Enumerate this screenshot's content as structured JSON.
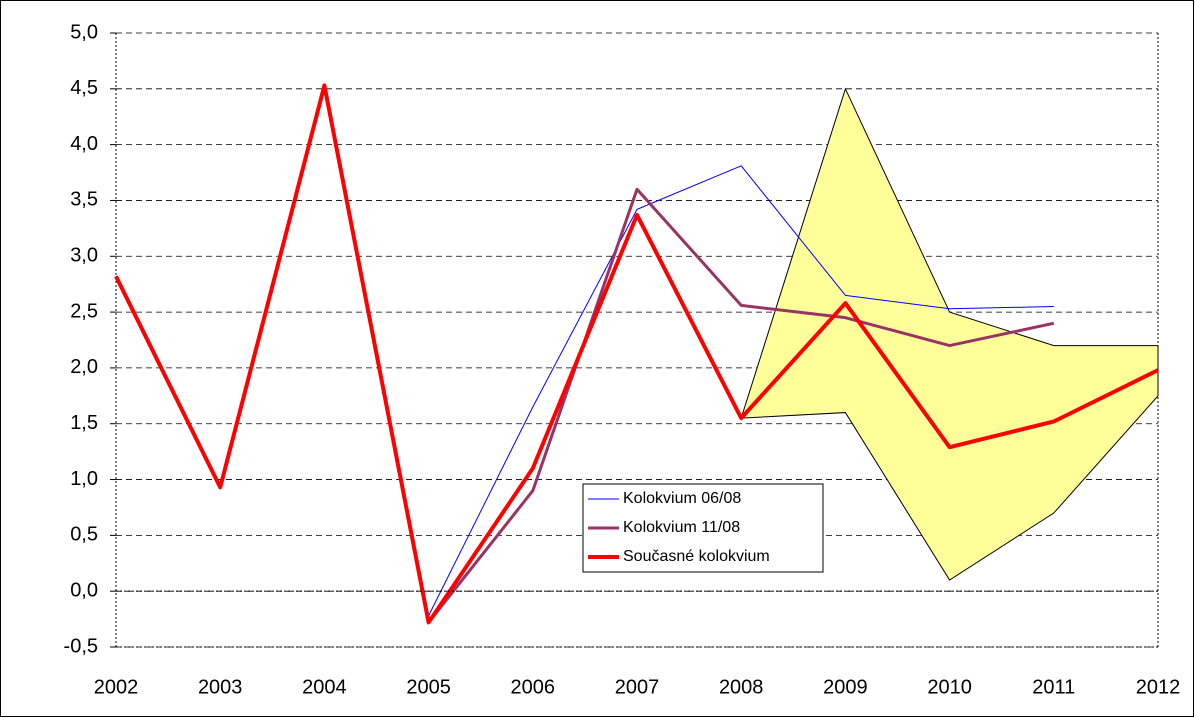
{
  "chart_data": {
    "type": "line",
    "categories": [
      "2002",
      "2003",
      "2004",
      "2005",
      "2006",
      "2007",
      "2008",
      "2009",
      "2010",
      "2011",
      "2012"
    ],
    "series": [
      {
        "name": "Kolokvium 06/08",
        "color": "#0000ff",
        "width": 1,
        "values": [
          2.82,
          0.93,
          4.53,
          -0.22,
          1.65,
          3.42,
          3.81,
          2.65,
          2.53,
          2.55,
          null
        ]
      },
      {
        "name": "Kolokvium 11/08",
        "color": "#993366",
        "width": 3,
        "values": [
          2.82,
          0.93,
          4.53,
          -0.28,
          0.9,
          3.6,
          2.56,
          2.45,
          2.2,
          2.4,
          null
        ]
      },
      {
        "name": "Současné kolokvium",
        "color": "#ff0000",
        "width": 4,
        "values": [
          2.82,
          0.93,
          4.53,
          -0.28,
          1.1,
          3.37,
          1.55,
          2.58,
          1.29,
          1.52,
          1.98
        ]
      }
    ],
    "range": {
      "color": "#ffff99",
      "upper": [
        null,
        null,
        null,
        null,
        null,
        null,
        1.55,
        4.5,
        2.5,
        2.2,
        2.2
      ],
      "lower": [
        null,
        null,
        null,
        null,
        null,
        null,
        1.55,
        1.6,
        0.1,
        0.7,
        1.75
      ]
    },
    "ylim": [
      -0.5,
      5
    ],
    "yticks": [
      {
        "value": -0.5,
        "label": "-0,5"
      },
      {
        "value": 0,
        "label": "0,0"
      },
      {
        "value": 0.5,
        "label": "0,5"
      },
      {
        "value": 1,
        "label": "1,0"
      },
      {
        "value": 1.5,
        "label": "1,5"
      },
      {
        "value": 2,
        "label": "2,0"
      },
      {
        "value": 2.5,
        "label": "2,5"
      },
      {
        "value": 3,
        "label": "3,0"
      },
      {
        "value": 3.5,
        "label": "3,5"
      },
      {
        "value": 4,
        "label": "4,0"
      },
      {
        "value": 4.5,
        "label": "4,5"
      },
      {
        "value": 5,
        "label": "5,0"
      }
    ],
    "grid": true
  }
}
